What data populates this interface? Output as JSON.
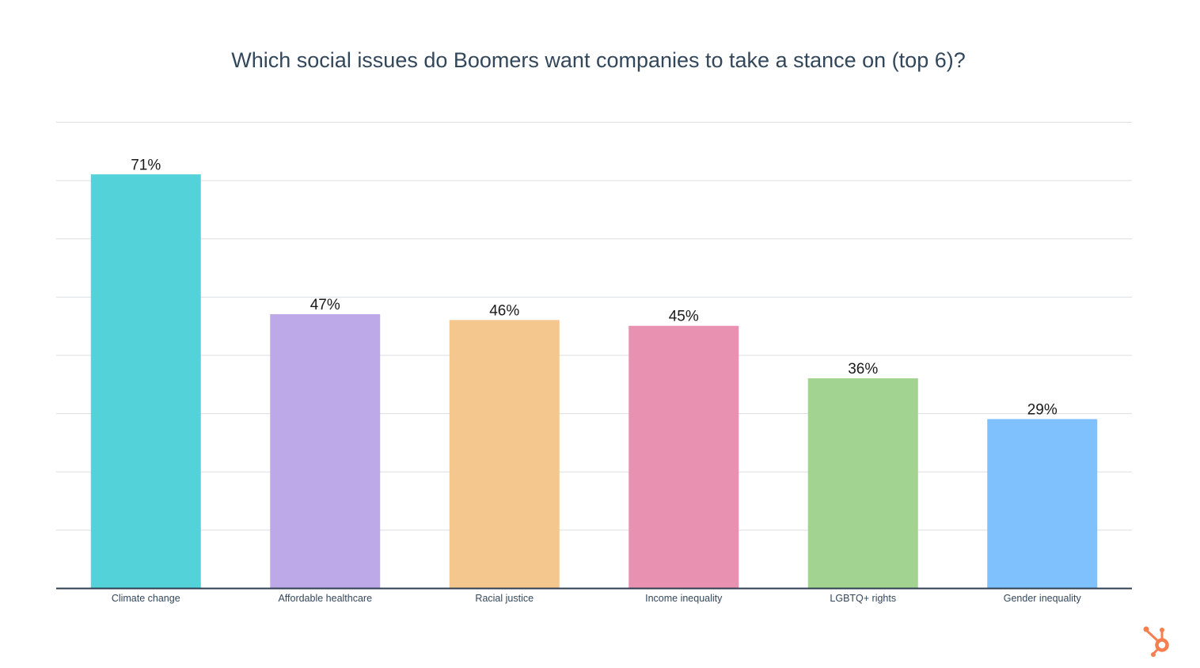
{
  "chart_data": {
    "type": "bar",
    "title": "Which social issues do Boomers want companies to take a stance on (top 6)?",
    "xlabel": "",
    "ylabel": "",
    "categories": [
      "Climate change",
      "Affordable healthcare",
      "Racial justice",
      "Income inequality",
      "LGBTQ+ rights",
      "Gender inequality"
    ],
    "values": [
      71,
      47,
      46,
      45,
      36,
      29
    ],
    "data_labels": [
      "71%",
      "47%",
      "46%",
      "45%",
      "36%",
      "29%"
    ],
    "colors": [
      "#53d3d9",
      "#bda9e8",
      "#f4c78f",
      "#e991b0",
      "#a2d390",
      "#7fc1fd"
    ],
    "ylim": [
      0,
      80
    ],
    "grid_step": 10,
    "grid": true,
    "y_tick_labels_shown": false,
    "unit": "%"
  },
  "branding": {
    "logo": "HubSpot",
    "logo_icon": "hubspot-sprocket-icon",
    "logo_color": "#f57f4f"
  }
}
